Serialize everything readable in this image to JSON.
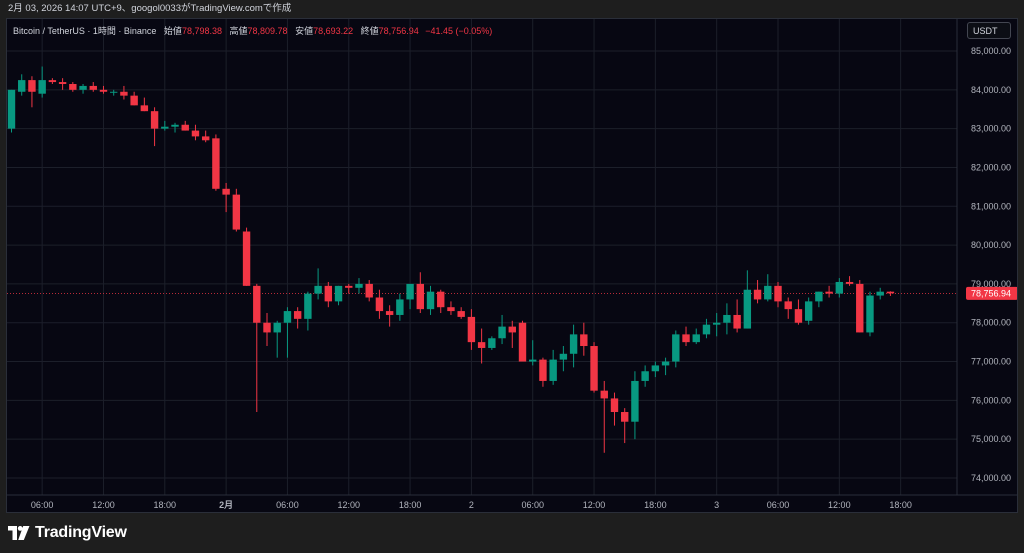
{
  "banner": {
    "text": "2月 03, 2026 14:07 UTC+9、googol0033がTradingView.comで作成"
  },
  "legend": {
    "symbol": "Bitcoin / TetherUS · 1時間 · Binance",
    "open_label": "始値",
    "open": "78,798.38",
    "high_label": "高値",
    "high": "78,809.78",
    "low_label": "安値",
    "low": "78,693.22",
    "close_label": "終値",
    "close": "78,756.94",
    "change": "−41.45 (−0.05%)"
  },
  "currency_button": {
    "label": "USDT"
  },
  "footer": {
    "logo_text": "TradingView"
  },
  "colors": {
    "up": "#089981",
    "down": "#f23645",
    "grid": "#1c1f2a",
    "background": "#070712"
  },
  "chart_data": {
    "type": "candlestick",
    "ylim": [
      73800,
      85400
    ],
    "y_ticks": [
      74000,
      75000,
      76000,
      77000,
      78000,
      79000,
      80000,
      81000,
      82000,
      83000,
      84000,
      85000
    ],
    "y_tick_labels": [
      "74,000.00",
      "75,000.00",
      "76,000.00",
      "77,000.00",
      "78,000.00",
      "79,000.00",
      "80,000.00",
      "81,000.00",
      "82,000.00",
      "83,000.00",
      "84,000.00",
      "85,000.00"
    ],
    "x_tick_labels": [
      {
        "index": 3,
        "label": "06:00",
        "bold": false
      },
      {
        "index": 9,
        "label": "12:00",
        "bold": false
      },
      {
        "index": 15,
        "label": "18:00",
        "bold": false
      },
      {
        "index": 21,
        "label": "2月",
        "bold": true
      },
      {
        "index": 27,
        "label": "06:00",
        "bold": false
      },
      {
        "index": 33,
        "label": "12:00",
        "bold": false
      },
      {
        "index": 39,
        "label": "18:00",
        "bold": false
      },
      {
        "index": 45,
        "label": "2",
        "bold": false
      },
      {
        "index": 51,
        "label": "06:00",
        "bold": false
      },
      {
        "index": 57,
        "label": "12:00",
        "bold": false
      },
      {
        "index": 63,
        "label": "18:00",
        "bold": false
      },
      {
        "index": 69,
        "label": "3",
        "bold": false
      },
      {
        "index": 75,
        "label": "06:00",
        "bold": false
      },
      {
        "index": 81,
        "label": "12:00",
        "bold": false
      },
      {
        "index": 87,
        "label": "18:00",
        "bold": false
      }
    ],
    "last_price": 78756.94,
    "last_price_label": "78,756.94",
    "candles": [
      [
        83000,
        84000,
        82900,
        84000
      ],
      [
        83950,
        84400,
        83850,
        84250
      ],
      [
        84250,
        84350,
        83550,
        83950
      ],
      [
        83900,
        84600,
        83800,
        84250
      ],
      [
        84250,
        84300,
        84150,
        84200
      ],
      [
        84200,
        84300,
        84000,
        84150
      ],
      [
        84150,
        84200,
        83950,
        84000
      ],
      [
        84000,
        84150,
        83900,
        84100
      ],
      [
        84100,
        84200,
        83950,
        84000
      ],
      [
        84000,
        84100,
        83900,
        83950
      ],
      [
        83950,
        84000,
        83850,
        83950
      ],
      [
        83950,
        84100,
        83750,
        83850
      ],
      [
        83850,
        83950,
        83600,
        83600
      ],
      [
        83600,
        83800,
        83450,
        83450
      ],
      [
        83450,
        83550,
        82550,
        83000
      ],
      [
        83000,
        83200,
        82950,
        83050
      ],
      [
        83050,
        83150,
        82900,
        83100
      ],
      [
        83100,
        83200,
        82950,
        82950
      ],
      [
        82950,
        83100,
        82700,
        82800
      ],
      [
        82800,
        82950,
        82650,
        82700
      ],
      [
        82750,
        82850,
        81400,
        81450
      ],
      [
        81450,
        81600,
        80850,
        81300
      ],
      [
        81300,
        81450,
        80350,
        80400
      ],
      [
        80350,
        80450,
        78950,
        78950
      ],
      [
        78950,
        79000,
        75700,
        78000
      ],
      [
        78000,
        78250,
        77400,
        77750
      ],
      [
        77750,
        78050,
        77100,
        78000
      ],
      [
        78000,
        78400,
        77100,
        78300
      ],
      [
        78300,
        78400,
        77850,
        78100
      ],
      [
        78100,
        78800,
        77800,
        78750
      ],
      [
        78750,
        79400,
        78600,
        78950
      ],
      [
        78950,
        79050,
        78400,
        78550
      ],
      [
        78550,
        78950,
        78450,
        78950
      ],
      [
        78950,
        79000,
        78750,
        78900
      ],
      [
        78900,
        79150,
        78750,
        79000
      ],
      [
        79000,
        79100,
        78550,
        78650
      ],
      [
        78650,
        78850,
        78100,
        78300
      ],
      [
        78300,
        78450,
        77900,
        78200
      ],
      [
        78200,
        78750,
        78050,
        78600
      ],
      [
        78600,
        78950,
        78350,
        79000
      ],
      [
        79000,
        79300,
        78250,
        78350
      ],
      [
        78350,
        78950,
        78200,
        78800
      ],
      [
        78800,
        78850,
        78250,
        78400
      ],
      [
        78400,
        78550,
        78200,
        78300
      ],
      [
        78300,
        78400,
        78100,
        78150
      ],
      [
        78150,
        78350,
        77300,
        77500
      ],
      [
        77500,
        77850,
        76950,
        77350
      ],
      [
        77350,
        77650,
        77300,
        77600
      ],
      [
        77600,
        78200,
        77450,
        77900
      ],
      [
        77900,
        78050,
        77350,
        77750
      ],
      [
        78000,
        78050,
        77000,
        77000
      ],
      [
        77000,
        77550,
        76900,
        77050
      ],
      [
        77050,
        77100,
        76350,
        76500
      ],
      [
        76500,
        77300,
        76400,
        77050
      ],
      [
        77050,
        77400,
        76750,
        77200
      ],
      [
        77200,
        77950,
        76850,
        77700
      ],
      [
        77700,
        78000,
        77150,
        77400
      ],
      [
        77400,
        77500,
        76200,
        76250
      ],
      [
        76250,
        76500,
        74650,
        76050
      ],
      [
        76050,
        76200,
        75350,
        75700
      ],
      [
        75700,
        75800,
        74900,
        75450
      ],
      [
        75450,
        76750,
        75000,
        76500
      ],
      [
        76500,
        76900,
        76350,
        76750
      ],
      [
        76750,
        77000,
        76600,
        76900
      ],
      [
        76900,
        77100,
        76650,
        77000
      ],
      [
        77000,
        77800,
        76850,
        77700
      ],
      [
        77700,
        77900,
        77400,
        77500
      ],
      [
        77500,
        77850,
        77450,
        77700
      ],
      [
        77700,
        78100,
        77600,
        77950
      ],
      [
        77950,
        78250,
        77650,
        78000
      ],
      [
        78000,
        78500,
        77700,
        78200
      ],
      [
        78200,
        78600,
        77750,
        77850
      ],
      [
        77850,
        79350,
        77850,
        78850
      ],
      [
        78850,
        79100,
        78500,
        78600
      ],
      [
        78600,
        79250,
        78550,
        78950
      ],
      [
        78950,
        79050,
        78400,
        78550
      ],
      [
        78550,
        78650,
        78100,
        78350
      ],
      [
        78350,
        78600,
        77950,
        78000
      ],
      [
        78050,
        78650,
        77950,
        78550
      ],
      [
        78550,
        78800,
        78400,
        78800
      ],
      [
        78800,
        78950,
        78650,
        78750
      ],
      [
        78750,
        79150,
        78650,
        79050
      ],
      [
        79050,
        79200,
        78950,
        79000
      ],
      [
        79000,
        79100,
        77750,
        77750
      ],
      [
        77750,
        78800,
        77650,
        78700
      ],
      [
        78700,
        78900,
        78600,
        78800
      ],
      [
        78800,
        78810,
        78690,
        78757
      ]
    ]
  }
}
